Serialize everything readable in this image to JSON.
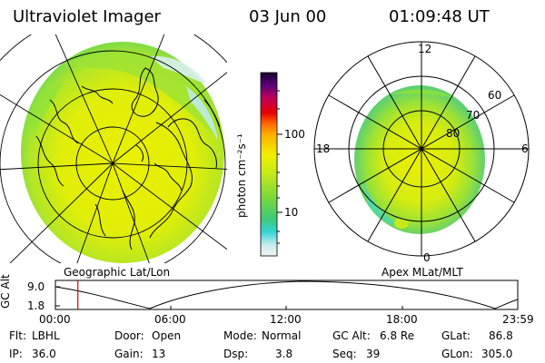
{
  "header": {
    "instrument": "Ultraviolet Imager",
    "date": "03 Jun 00",
    "time": "01:09:48 UT"
  },
  "left_map": {
    "label": "Geographic Lat/Lon"
  },
  "right_map": {
    "label": "Apex MLat/MLT",
    "mlt_labels": {
      "top": "12",
      "left": "18",
      "right": "6",
      "bottom": "0"
    },
    "lat_labels": [
      "60",
      "70",
      "80"
    ]
  },
  "colorbar": {
    "unit_label": "photon cm⁻²s⁻¹",
    "ticks": [
      "100",
      "10"
    ]
  },
  "altitude_plot": {
    "ylabel": "GC Alt",
    "yticks": [
      "9.0",
      "1.8"
    ],
    "xticks": [
      "00:00",
      "06:00",
      "12:00",
      "18:00",
      "23:59"
    ],
    "current_time_hours": 1.163
  },
  "info": {
    "flt_label": "Flt:",
    "flt_value": "LBHL",
    "ip_label": "IP:",
    "ip_value": "36.0",
    "door_label": "Door:",
    "door_value": "Open",
    "gain_label": "Gain:",
    "gain_value": "13",
    "mode_label": "Mode:",
    "mode_value": "Normal",
    "dsp_label": "Dsp:",
    "dsp_value": "3.8",
    "gcalt_label": "GC Alt:",
    "gcalt_value": "6.8 Re",
    "seq_label": "Seq:",
    "seq_value": "39",
    "glat_label": "GLat:",
    "glat_value": "86.8",
    "glon_label": "GLon:",
    "glon_value": "305.0"
  },
  "colors": {
    "yellow": "#eaf000",
    "green": "#8ee43a",
    "cyan": "#3ed8d0",
    "pale": "#d8f0ee",
    "marker": "#e00000"
  }
}
